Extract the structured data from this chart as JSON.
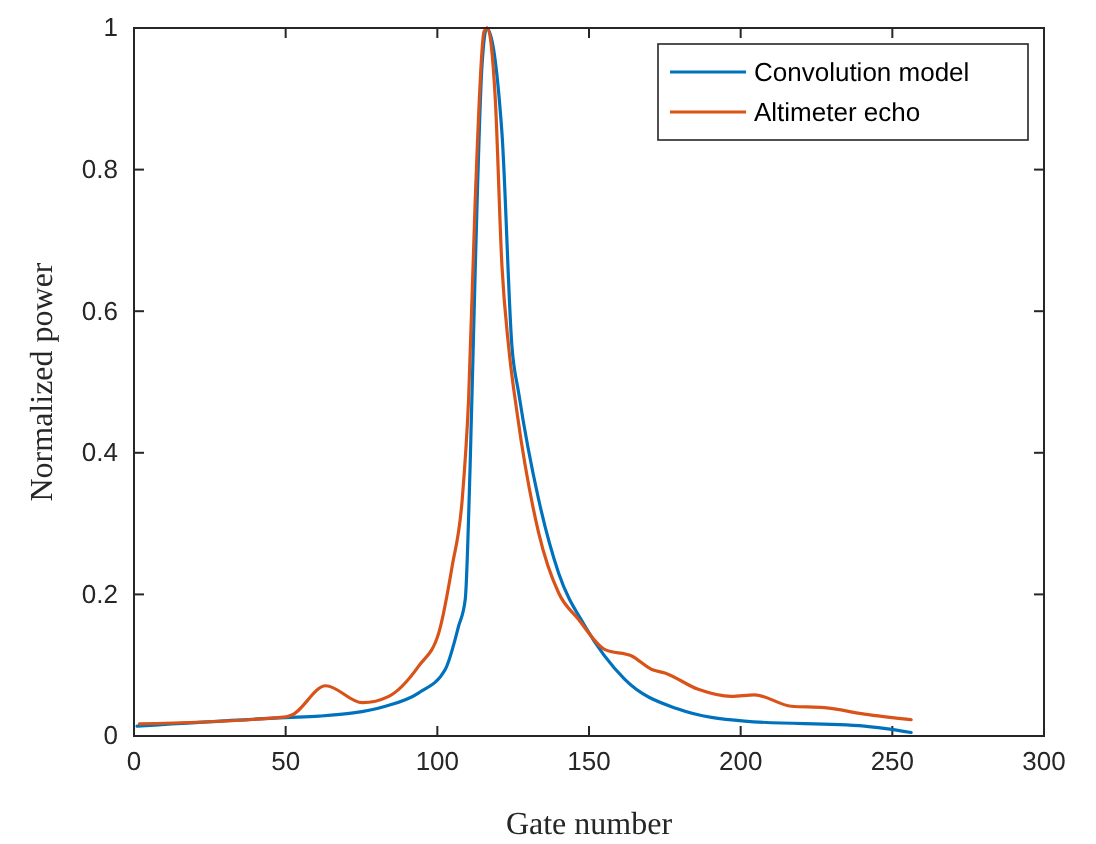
{
  "chart_data": {
    "type": "line",
    "xlabel": "Gate number",
    "ylabel": "Normalized power",
    "xlim": [
      0,
      300
    ],
    "xticks": [
      0,
      50,
      100,
      150,
      200,
      250,
      300
    ],
    "ylim": [
      0,
      1
    ],
    "yticks": [
      0,
      0.2,
      0.4,
      0.6,
      0.8,
      1
    ],
    "legend": "top right",
    "grid": false,
    "line_style": "solid",
    "marker": "none",
    "series": [
      {
        "name": "Convolution model",
        "color": "#0072bd",
        "x": [
          1,
          50,
          61,
          82.9,
          93.9,
          102.6,
          107,
          109.2,
          110.8,
          112.5,
          114.7,
          116.3,
          121.3,
          124.6,
          126.8,
          133.4,
          140,
          148.7,
          161.8,
          179.4,
          201.3,
          240.8,
          256.2
        ],
        "values": [
          0.014,
          0.026,
          0.028,
          0.042,
          0.061,
          0.094,
          0.155,
          0.193,
          0.38,
          0.66,
          0.945,
          1,
          0.852,
          0.55,
          0.485,
          0.334,
          0.23,
          0.155,
          0.08,
          0.038,
          0.021,
          0.014,
          0.005
        ]
      },
      {
        "name": "Altimeter echo",
        "color": "#d95319",
        "x": [
          1.8,
          50,
          52.2,
          63.2,
          75.3,
          84,
          93.9,
          100.5,
          104.9,
          108.2,
          110.3,
          112.5,
          115.4,
          116.5,
          119.1,
          121.3,
          123.5,
          126.3,
          133.4,
          140,
          146.5,
          155.3,
          164.1,
          170.7,
          175,
          186,
          197,
          204.6,
          216.7,
          227.6,
          240.8,
          256.2
        ],
        "values": [
          0.017,
          0.027,
          0.03,
          0.071,
          0.047,
          0.056,
          0.099,
          0.146,
          0.24,
          0.334,
          0.475,
          0.758,
          0.995,
          1,
          0.9,
          0.664,
          0.55,
          0.456,
          0.287,
          0.202,
          0.165,
          0.122,
          0.113,
          0.094,
          0.089,
          0.066,
          0.056,
          0.058,
          0.042,
          0.04,
          0.031,
          0.023
        ]
      }
    ]
  }
}
